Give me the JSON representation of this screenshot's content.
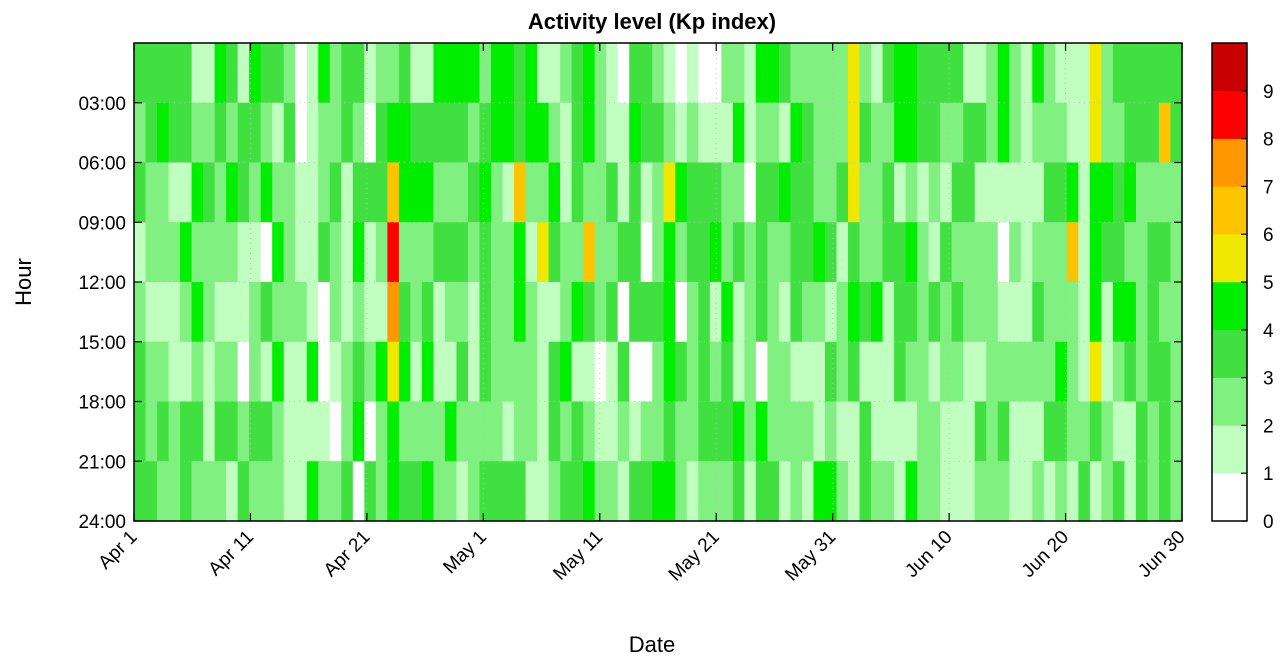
{
  "chart_data": {
    "type": "heatmap",
    "title": "Activity level (Kp index)",
    "xlabel": "Date",
    "ylabel": "Hour",
    "x_tick_labels": [
      "Apr 1",
      "Apr 11",
      "Apr 21",
      "May 1",
      "May 11",
      "May 21",
      "May 31",
      "Jun 10",
      "Jun 20",
      "Jun 30"
    ],
    "y_tick_labels": [
      "03:00",
      "06:00",
      "09:00",
      "12:00",
      "15:00",
      "18:00",
      "21:00",
      "24:00"
    ],
    "colorbar_tick_labels": [
      "0",
      "1",
      "2",
      "3",
      "4",
      "5",
      "6",
      "7",
      "8",
      "9"
    ],
    "colorbar_range": [
      0,
      10
    ],
    "colormap": [
      {
        "from": 0,
        "to": 1,
        "color": "#ffffff"
      },
      {
        "from": 1,
        "to": 2,
        "color": "#c0ffc0"
      },
      {
        "from": 2,
        "to": 3,
        "color": "#80f080"
      },
      {
        "from": 3,
        "to": 4,
        "color": "#40e040"
      },
      {
        "from": 4,
        "to": 5,
        "color": "#00ee00"
      },
      {
        "from": 5,
        "to": 6,
        "color": "#f0e800"
      },
      {
        "from": 6,
        "to": 7,
        "color": "#ffc400"
      },
      {
        "from": 7,
        "to": 8,
        "color": "#ff9800"
      },
      {
        "from": 8,
        "to": 9,
        "color": "#ff0000"
      },
      {
        "from": 9,
        "to": 10,
        "color": "#c80000"
      }
    ],
    "date_range": [
      "Apr 1",
      "Jun 30"
    ],
    "hour_range": [
      "00:00",
      "24:00"
    ],
    "bins_per_day": 8,
    "rows": [
      "3333311431433201423312231144442443411234210332101002214432222252134433331124214211152333333",
      "2343322323321301223203443333323443442134211433212111412214322253224433223324212221152233363",
      "3221143243242211231333644422234216224132231312543332203343322352231212133111111334144342222",
      "1222422221104211321412822233323224153226223302423342323223343132233421322220212226143322332",
      "2111242111232221021211732312213224211243230333402314123213221243413323232221113222141442322",
      "3221121220214114012324541411313222213411013002432323120221113231113221221122222242151232332",
      "3232331332332111102402422224222212213232112122322333424222212113111122111323111332232113232",
      "3322322213222114223032433422123333112334221334421222313312144213221422111222112121312313232"
    ],
    "hour_order_top_to_bottom": [
      "00-03",
      "03-06",
      "06-09",
      "09-12",
      "12-15",
      "15-18",
      "18-21",
      "21-24"
    ]
  }
}
